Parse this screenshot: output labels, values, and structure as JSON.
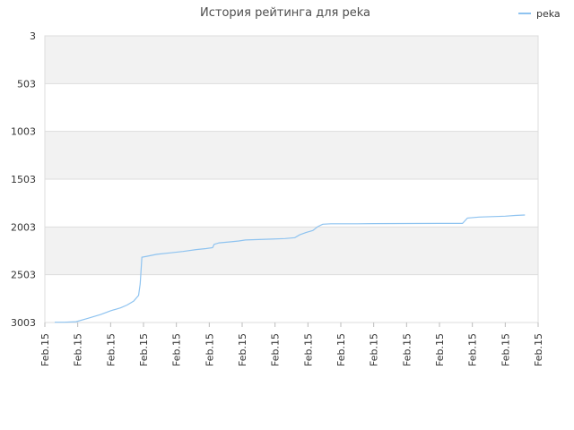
{
  "chart_data": {
    "type": "line",
    "title": "История рейтинга для peka",
    "legend": {
      "position": "top-right",
      "entries": [
        "peka"
      ]
    },
    "y_axis": {
      "inverted": true,
      "ylim": [
        3,
        3003
      ],
      "tick_labels": [
        "3",
        "503",
        "1003",
        "1503",
        "2003",
        "2503",
        "3003"
      ]
    },
    "x_axis": {
      "xlim": [
        0,
        15
      ],
      "tick_labels": [
        "Feb.15",
        "Feb.15",
        "Feb.15",
        "Feb.15",
        "Feb.15",
        "Feb.15",
        "Feb.15",
        "Feb.15",
        "Feb.15",
        "Feb.15",
        "Feb.15",
        "Feb.15",
        "Feb.15",
        "Feb.15",
        "Feb.15",
        "Feb.15"
      ]
    },
    "grid": true,
    "colors": {
      "line": "#8ec3f0",
      "band": "#f2f2f2",
      "grid": "#dddddd"
    },
    "series": [
      {
        "name": "peka",
        "points": [
          [
            0.3,
            3000
          ],
          [
            0.6,
            3000
          ],
          [
            0.95,
            2995
          ],
          [
            1.3,
            2960
          ],
          [
            1.7,
            2920
          ],
          [
            2.0,
            2880
          ],
          [
            2.3,
            2850
          ],
          [
            2.5,
            2820
          ],
          [
            2.7,
            2780
          ],
          [
            2.85,
            2720
          ],
          [
            2.9,
            2600
          ],
          [
            2.95,
            2320
          ],
          [
            3.1,
            2310
          ],
          [
            3.4,
            2290
          ],
          [
            3.8,
            2275
          ],
          [
            4.2,
            2260
          ],
          [
            4.6,
            2240
          ],
          [
            4.9,
            2230
          ],
          [
            5.1,
            2220
          ],
          [
            5.15,
            2185
          ],
          [
            5.3,
            2170
          ],
          [
            5.6,
            2160
          ],
          [
            5.9,
            2150
          ],
          [
            6.1,
            2140
          ],
          [
            6.5,
            2135
          ],
          [
            6.9,
            2130
          ],
          [
            7.3,
            2125
          ],
          [
            7.6,
            2115
          ],
          [
            7.75,
            2085
          ],
          [
            7.95,
            2060
          ],
          [
            8.15,
            2040
          ],
          [
            8.3,
            2000
          ],
          [
            8.45,
            1975
          ],
          [
            8.7,
            1970
          ],
          [
            9.5,
            1970
          ],
          [
            10.0,
            1968
          ],
          [
            11.0,
            1967
          ],
          [
            12.0,
            1966
          ],
          [
            12.7,
            1966
          ],
          [
            12.85,
            1910
          ],
          [
            13.2,
            1900
          ],
          [
            13.6,
            1895
          ],
          [
            14.0,
            1890
          ],
          [
            14.3,
            1883
          ],
          [
            14.6,
            1878
          ]
        ]
      }
    ]
  }
}
